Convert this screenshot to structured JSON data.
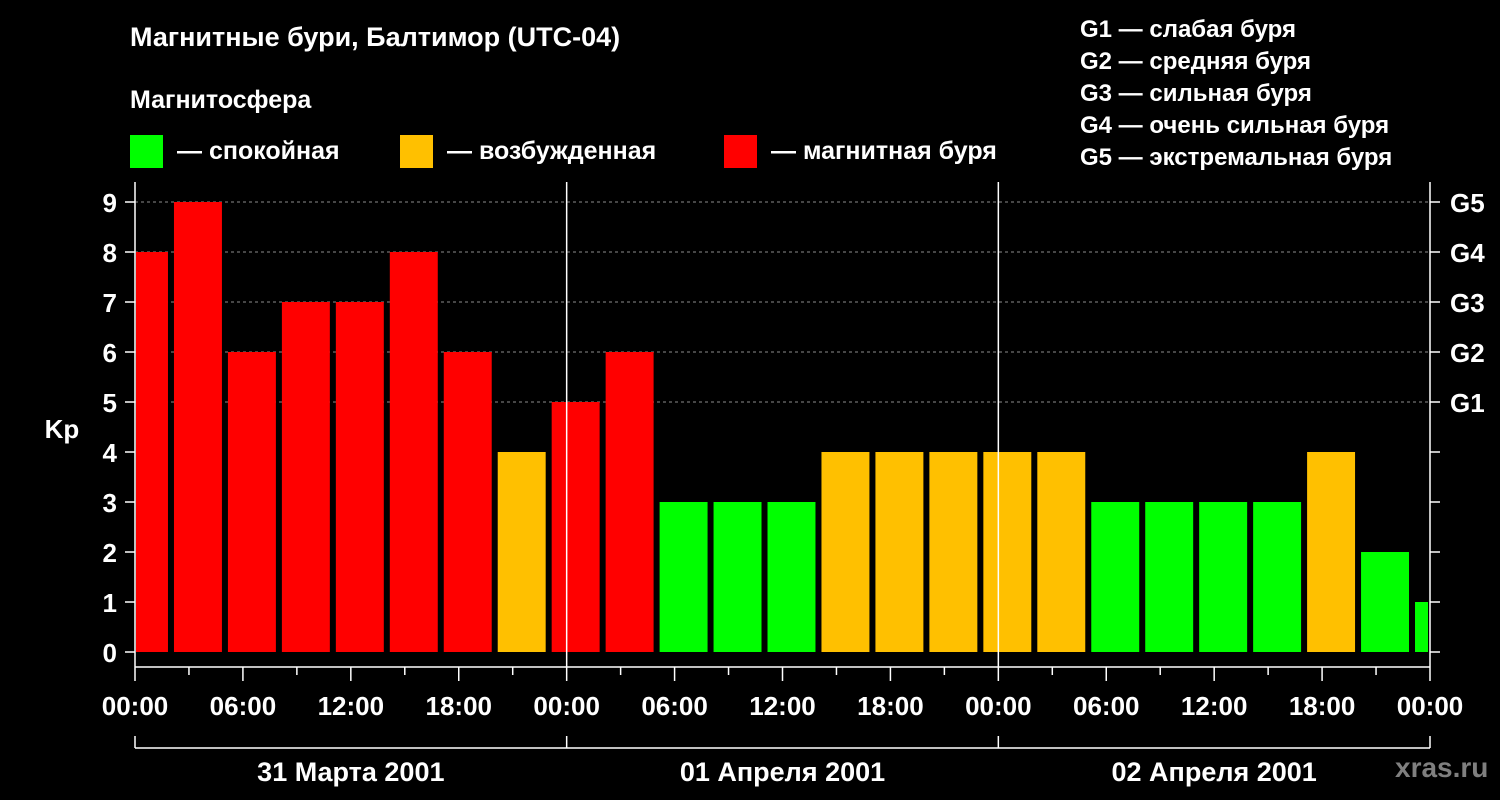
{
  "title": "Магнитные бури, Балтимор (UTC-04)",
  "legend": {
    "heading": "Магнитосфера",
    "items": [
      {
        "label": "— спокойная",
        "color": "#00ff00"
      },
      {
        "label": "— возбужденная",
        "color": "#ffc000"
      },
      {
        "label": "— магнитная буря",
        "color": "#ff0000"
      }
    ]
  },
  "storm_scale": [
    "G1 — слабая буря",
    "G2 — средняя буря",
    "G3 — сильная буря",
    "G4 — очень сильная буря",
    "G5 — экстремальная буря"
  ],
  "watermark": "xras.ru",
  "chart_data": {
    "type": "bar",
    "title": "Магнитные бури, Балтимор (UTC-04)",
    "ylabel": "Kp",
    "ylim": [
      0,
      9
    ],
    "yticks": [
      "0",
      "1",
      "2",
      "3",
      "4",
      "5",
      "6",
      "7",
      "8",
      "9"
    ],
    "right_ticks": [
      {
        "value": 5,
        "label": "G1"
      },
      {
        "value": 6,
        "label": "G2"
      },
      {
        "value": 7,
        "label": "G3"
      },
      {
        "value": 8,
        "label": "G4"
      },
      {
        "value": 9,
        "label": "G5"
      }
    ],
    "xlim_hours": [
      0,
      72
    ],
    "xtick_labels": [
      "00:00",
      "06:00",
      "12:00",
      "18:00",
      "00:00",
      "06:00",
      "12:00",
      "18:00",
      "00:00",
      "06:00",
      "12:00",
      "18:00",
      "00:00"
    ],
    "days": [
      "31 Марта 2001",
      "01 Апреля 2001",
      "02 Апреля 2001"
    ],
    "grid": "dashed at Kp 5–9",
    "bars": [
      {
        "start": 0,
        "end": 2,
        "value": 8
      },
      {
        "start": 2,
        "end": 5,
        "value": 9
      },
      {
        "start": 5,
        "end": 8,
        "value": 6
      },
      {
        "start": 8,
        "end": 11,
        "value": 7
      },
      {
        "start": 11,
        "end": 14,
        "value": 7
      },
      {
        "start": 14,
        "end": 17,
        "value": 8
      },
      {
        "start": 17,
        "end": 20,
        "value": 6
      },
      {
        "start": 20,
        "end": 23,
        "value": 4
      },
      {
        "start": 23,
        "end": 26,
        "value": 5
      },
      {
        "start": 26,
        "end": 29,
        "value": 6
      },
      {
        "start": 29,
        "end": 32,
        "value": 3
      },
      {
        "start": 32,
        "end": 35,
        "value": 3
      },
      {
        "start": 35,
        "end": 38,
        "value": 3
      },
      {
        "start": 38,
        "end": 41,
        "value": 4
      },
      {
        "start": 41,
        "end": 44,
        "value": 4
      },
      {
        "start": 44,
        "end": 47,
        "value": 4
      },
      {
        "start": 47,
        "end": 50,
        "value": 4
      },
      {
        "start": 50,
        "end": 53,
        "value": 4
      },
      {
        "start": 53,
        "end": 56,
        "value": 3
      },
      {
        "start": 56,
        "end": 59,
        "value": 3
      },
      {
        "start": 59,
        "end": 62,
        "value": 3
      },
      {
        "start": 62,
        "end": 65,
        "value": 3
      },
      {
        "start": 65,
        "end": 68,
        "value": 4
      },
      {
        "start": 68,
        "end": 71,
        "value": 2
      },
      {
        "start": 71,
        "end": 72,
        "value": 1
      }
    ],
    "colors": {
      "quiet": "#00ff00",
      "unsettled": "#ffc000",
      "storm": "#ff0000",
      "axis": "#ffffff",
      "grid": "#8c8c8c"
    }
  }
}
